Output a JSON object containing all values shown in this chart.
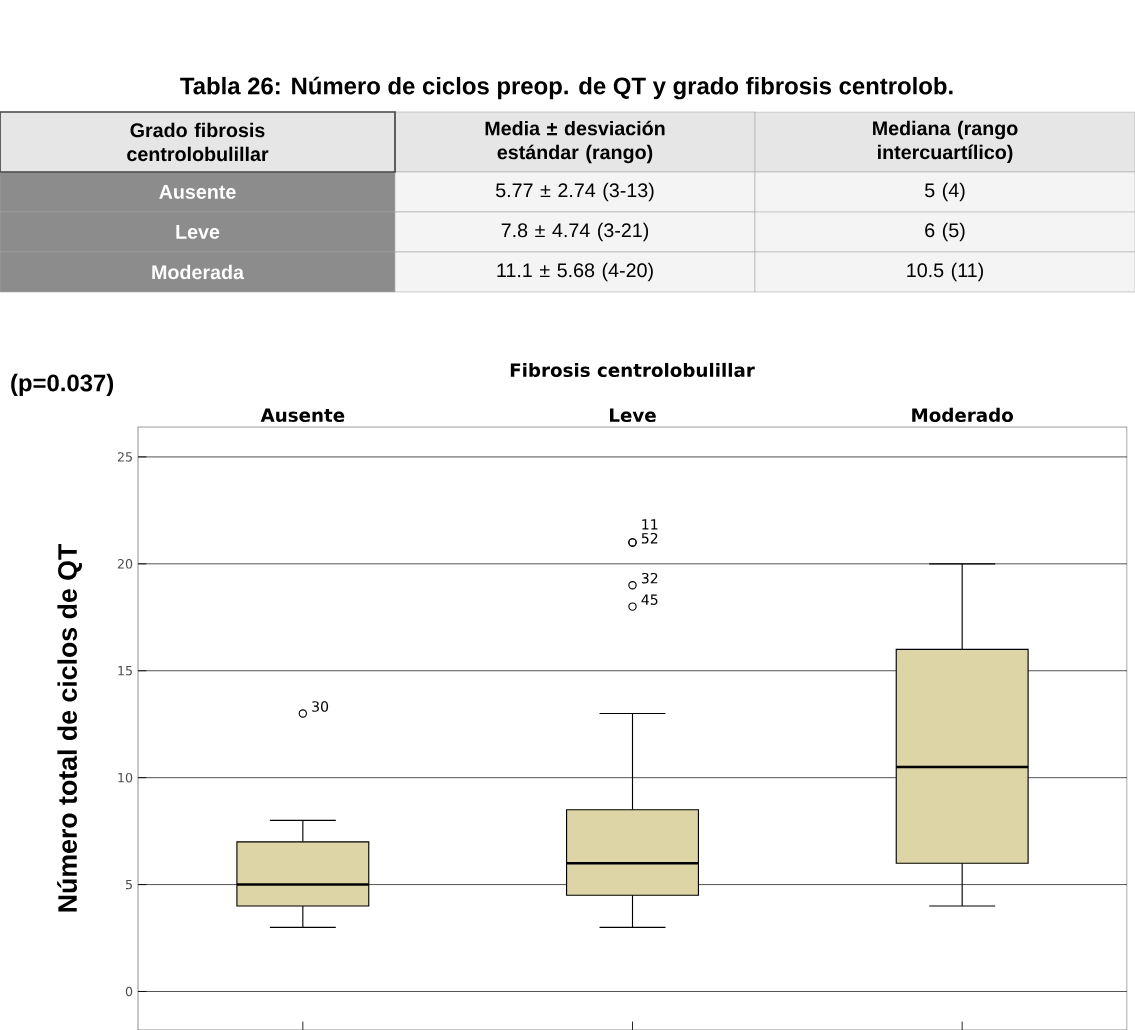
{
  "chart_data": [
    {
      "type": "other",
      "title": "Tabla 26: Número de ciclos preop. de QT y grado fibrosis centrolob.",
      "annotations": [
        "Grado fibrosis centrolobulillar",
        "Media ± desviación estándar (rango)",
        "Mediana (rango intercuartílico)",
        "Ausente",
        "5.77 ± 2.74 (3-13)",
        "5 (4)",
        "Leve",
        "7.8 ± 4.74 (3-21)",
        "6 (5)",
        "Moderada",
        "11.1 ± 5.68 (4-20)",
        "10.5 (11)"
      ]
    },
    {
      "type": "box",
      "title": "Fibrosis centrolobulillar",
      "ylabel": "Número total de ciclos de QT",
      "categories": [
        "Ausente",
        "Leve",
        "Moderado"
      ],
      "boxes": [
        {
          "low": 3,
          "q1": 4,
          "median": 5,
          "q3": 7,
          "high": 8,
          "outliers": [
            13
          ]
        },
        {
          "low": 3,
          "q1": 4.5,
          "median": 6,
          "q3": 8.5,
          "high": 13,
          "outliers": [
            21,
            21,
            19,
            18
          ]
        },
        {
          "low": 4,
          "q1": 6,
          "median": 10.5,
          "q3": 16,
          "high": 20
        }
      ],
      "color": "#ddd5a5",
      "ylim": [
        -1.8,
        26.4
      ],
      "yticks": [
        0,
        5,
        10,
        15,
        20,
        25
      ],
      "grid": "y",
      "marker": "circle",
      "annotations": [
        "(p=0.037)",
        "30",
        "11",
        "52",
        "32",
        "45"
      ]
    }
  ]
}
